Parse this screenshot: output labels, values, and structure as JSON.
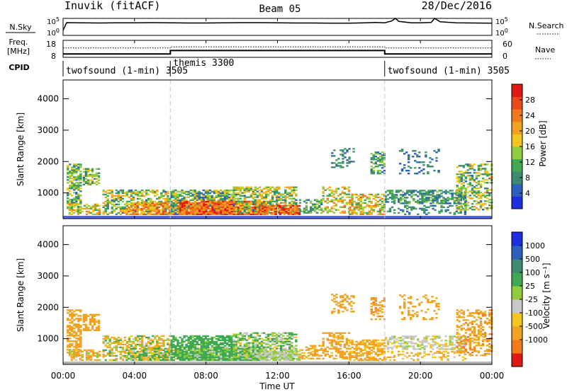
{
  "header": {
    "station": "Inuvik (fitACF)",
    "beam": "Beam 05",
    "date": "28/Dec/2016"
  },
  "noise_panel": {
    "left_label": "N.Sky",
    "right_label": "N.Search",
    "right_legend_line": "dotted",
    "ytick_labels": [
      "10^5",
      "10^0"
    ],
    "sky_noise_trace": [
      [
        0.0,
        0.3
      ],
      [
        0.2,
        0.75
      ],
      [
        1,
        0.74
      ],
      [
        2,
        0.73
      ],
      [
        3,
        0.74
      ],
      [
        4,
        0.74
      ],
      [
        5,
        0.75
      ],
      [
        6,
        0.74
      ],
      [
        7,
        0.73
      ],
      [
        8,
        0.73
      ],
      [
        9,
        0.74
      ],
      [
        10,
        0.75
      ],
      [
        11,
        0.75
      ],
      [
        12,
        0.74
      ],
      [
        13,
        0.73
      ],
      [
        14,
        0.73
      ],
      [
        15,
        0.72
      ],
      [
        16,
        0.72
      ],
      [
        16.9,
        0.74
      ],
      [
        17.5,
        0.76
      ],
      [
        18,
        0.74
      ],
      [
        18.4,
        0.85
      ],
      [
        18.6,
        1.0
      ],
      [
        18.8,
        0.82
      ],
      [
        19.5,
        0.74
      ],
      [
        20,
        0.74
      ],
      [
        20.6,
        0.76
      ],
      [
        20.8,
        1.0
      ],
      [
        21.1,
        0.8
      ],
      [
        22,
        0.74
      ],
      [
        23,
        0.73
      ],
      [
        24,
        0.72
      ]
    ]
  },
  "freq_panel": {
    "left_label_top": "Freq.",
    "left_label_bottom": "[MHz]",
    "right_label": "Nave",
    "right_legend_line": "dotted",
    "left_ticks": [
      8,
      18
    ],
    "right_ticks": [
      0,
      60
    ],
    "freq_trace": [
      [
        0,
        10
      ],
      [
        6,
        10
      ],
      [
        6,
        12
      ],
      [
        18,
        12
      ],
      [
        18,
        10
      ],
      [
        24,
        10
      ]
    ],
    "nave_trace": [
      [
        0,
        33
      ],
      [
        6,
        33
      ],
      [
        6,
        37
      ],
      [
        18,
        37
      ],
      [
        18,
        33
      ],
      [
        24,
        33
      ]
    ]
  },
  "cpid_panel": {
    "label": "CPID",
    "boundaries": [
      6,
      18
    ],
    "segments": [
      {
        "start": 0,
        "text": "twofsound (1-min) 3505"
      },
      {
        "start": 6,
        "text": "themis 3300"
      },
      {
        "start": 18,
        "text": "twofsound (1-min) 3505"
      }
    ]
  },
  "x_axis": {
    "title": "Time UT",
    "tick_labels": [
      "00:00",
      "04:00",
      "08:00",
      "12:00",
      "16:00",
      "20:00",
      "00:00"
    ],
    "range_hours": [
      0,
      24
    ]
  },
  "chart_data": [
    {
      "type": "heatmap",
      "name": "power",
      "ylabel": "Slant Range [km]",
      "ylim": [
        180,
        4600
      ],
      "ytick_labels": [
        "1000",
        "2000",
        "3000",
        "4000"
      ],
      "ytick_values": [
        1000,
        2000,
        3000,
        4000
      ],
      "colorbar_label": "Power [dB]",
      "colorbar_tick_labels": [
        "4",
        "8",
        "12",
        "16",
        "20",
        "24",
        "28"
      ],
      "colorbar_range": [
        0,
        32
      ],
      "colorbar_colors": [
        "#1c2ee0",
        "#2e5fbd",
        "#3d8a6e",
        "#3fa852",
        "#8fcd3a",
        "#f2c61e",
        "#f2a21e",
        "#f07a1c",
        "#ea4a16",
        "#e01a12"
      ],
      "ground_band": {
        "range_lo": 180,
        "range_hi": 270,
        "value": 2
      },
      "blobs": [
        {
          "t0": 0.2,
          "t1": 1.0,
          "r0": 450,
          "r1": 1900,
          "vlo": 6,
          "vhi": 18,
          "dens": 0.55
        },
        {
          "t0": 1.1,
          "t1": 2.0,
          "r0": 1250,
          "r1": 1750,
          "vlo": 6,
          "vhi": 20,
          "dens": 0.6
        },
        {
          "t0": 0.3,
          "t1": 2.0,
          "r0": 300,
          "r1": 650,
          "vlo": 10,
          "vhi": 24,
          "dens": 0.6
        },
        {
          "t0": 2.2,
          "t1": 6.0,
          "r0": 300,
          "r1": 1100,
          "vlo": 6,
          "vhi": 22,
          "dens": 0.55
        },
        {
          "t0": 3.5,
          "t1": 6.5,
          "r0": 300,
          "r1": 700,
          "vlo": 16,
          "vhi": 28,
          "dens": 0.7
        },
        {
          "t0": 6.0,
          "t1": 9.5,
          "r0": 300,
          "r1": 1100,
          "vlo": 4,
          "vhi": 20,
          "dens": 0.7
        },
        {
          "t0": 6.5,
          "t1": 11.5,
          "r0": 300,
          "r1": 750,
          "vlo": 20,
          "vhi": 32,
          "dens": 0.85
        },
        {
          "t0": 9.5,
          "t1": 13.0,
          "r0": 350,
          "r1": 1200,
          "vlo": 6,
          "vhi": 22,
          "dens": 0.6
        },
        {
          "t0": 11.0,
          "t1": 13.2,
          "r0": 300,
          "r1": 600,
          "vlo": 20,
          "vhi": 32,
          "dens": 0.8
        },
        {
          "t0": 13.2,
          "t1": 14.5,
          "r0": 350,
          "r1": 800,
          "vlo": 6,
          "vhi": 16,
          "dens": 0.45
        },
        {
          "t0": 14.5,
          "t1": 16.0,
          "r0": 350,
          "r1": 1200,
          "vlo": 10,
          "vhi": 24,
          "dens": 0.4
        },
        {
          "t0": 15.0,
          "t1": 16.2,
          "r0": 1800,
          "r1": 2400,
          "vlo": 4,
          "vhi": 12,
          "dens": 0.3
        },
        {
          "t0": 16.0,
          "t1": 18.0,
          "r0": 300,
          "r1": 950,
          "vlo": 10,
          "vhi": 26,
          "dens": 0.6
        },
        {
          "t0": 17.2,
          "t1": 18.0,
          "r0": 1600,
          "r1": 2300,
          "vlo": 4,
          "vhi": 16,
          "dens": 0.5
        },
        {
          "t0": 18.0,
          "t1": 22.5,
          "r0": 650,
          "r1": 1100,
          "vlo": 4,
          "vhi": 14,
          "dens": 0.55
        },
        {
          "t0": 18.0,
          "t1": 22.5,
          "r0": 300,
          "r1": 600,
          "vlo": 4,
          "vhi": 12,
          "dens": 0.3
        },
        {
          "t0": 18.8,
          "t1": 21.0,
          "r0": 1600,
          "r1": 2400,
          "vlo": 4,
          "vhi": 10,
          "dens": 0.18
        },
        {
          "t0": 22.0,
          "t1": 24.0,
          "r0": 450,
          "r1": 1900,
          "vlo": 6,
          "vhi": 22,
          "dens": 0.45
        }
      ]
    },
    {
      "type": "heatmap",
      "name": "velocity",
      "ylabel": "Slant Range [km]",
      "ylim": [
        180,
        4600
      ],
      "ytick_labels": [
        "1000",
        "2000",
        "3000",
        "4000"
      ],
      "ytick_values": [
        1000,
        2000,
        3000,
        4000
      ],
      "colorbar_label": "Velocity [m s⁻¹]",
      "colorbar_tick_labels": [
        "1000",
        "500",
        "100",
        "25",
        "-25",
        "-100",
        "-500",
        "-1000"
      ],
      "colorbar_range": [
        -1200,
        1200
      ],
      "colorbar_colors": [
        "#1c2ee0",
        "#2e5fbd",
        "#3d8a6e",
        "#3fa852",
        "#8fcd3a",
        "#c8c8c8",
        "#f2c61e",
        "#f2a21e",
        "#f07a1c",
        "#e01a12"
      ],
      "ground_band": {
        "range_lo": 180,
        "range_hi": 270,
        "value": 0
      },
      "blobs": [
        {
          "t0": 0.2,
          "t1": 1.0,
          "r0": 450,
          "r1": 1900,
          "vlo": -500,
          "vhi": -100,
          "dens": 0.55
        },
        {
          "t0": 1.1,
          "t1": 2.0,
          "r0": 1250,
          "r1": 1750,
          "vlo": -500,
          "vhi": -100,
          "dens": 0.6
        },
        {
          "t0": 0.3,
          "t1": 2.0,
          "r0": 300,
          "r1": 650,
          "vlo": -300,
          "vhi": 100,
          "dens": 0.6
        },
        {
          "t0": 2.2,
          "t1": 6.0,
          "r0": 300,
          "r1": 1100,
          "vlo": -300,
          "vhi": 150,
          "dens": 0.55
        },
        {
          "t0": 3.5,
          "t1": 6.5,
          "r0": 300,
          "r1": 700,
          "vlo": -150,
          "vhi": 300,
          "dens": 0.7
        },
        {
          "t0": 6.0,
          "t1": 9.5,
          "r0": 300,
          "r1": 1100,
          "vlo": 50,
          "vhi": 400,
          "dens": 0.7
        },
        {
          "t0": 6.5,
          "t1": 11.5,
          "r0": 300,
          "r1": 750,
          "vlo": -20,
          "vhi": 300,
          "dens": 0.85
        },
        {
          "t0": 9.5,
          "t1": 13.0,
          "r0": 350,
          "r1": 1200,
          "vlo": -60,
          "vhi": 200,
          "dens": 0.6
        },
        {
          "t0": 11.0,
          "t1": 13.2,
          "r0": 300,
          "r1": 600,
          "vlo": -20,
          "vhi": 60,
          "dens": 0.8
        },
        {
          "t0": 13.2,
          "t1": 14.5,
          "r0": 350,
          "r1": 800,
          "vlo": -300,
          "vhi": -50,
          "dens": 0.45
        },
        {
          "t0": 14.5,
          "t1": 16.0,
          "r0": 350,
          "r1": 1200,
          "vlo": -500,
          "vhi": -60,
          "dens": 0.4
        },
        {
          "t0": 15.0,
          "t1": 16.2,
          "r0": 1800,
          "r1": 2400,
          "vlo": -500,
          "vhi": -100,
          "dens": 0.3
        },
        {
          "t0": 16.0,
          "t1": 18.0,
          "r0": 300,
          "r1": 950,
          "vlo": -400,
          "vhi": 0,
          "dens": 0.6
        },
        {
          "t0": 17.2,
          "t1": 18.0,
          "r0": 1600,
          "r1": 2300,
          "vlo": -600,
          "vhi": -150,
          "dens": 0.5
        },
        {
          "t0": 18.0,
          "t1": 22.5,
          "r0": 650,
          "r1": 1100,
          "vlo": -40,
          "vhi": 40,
          "dens": 0.55
        },
        {
          "t0": 18.0,
          "t1": 22.5,
          "r0": 300,
          "r1": 600,
          "vlo": -200,
          "vhi": 0,
          "dens": 0.3
        },
        {
          "t0": 18.8,
          "t1": 21.0,
          "r0": 1600,
          "r1": 2400,
          "vlo": -500,
          "vhi": -100,
          "dens": 0.18
        },
        {
          "t0": 22.0,
          "t1": 24.0,
          "r0": 450,
          "r1": 1900,
          "vlo": -600,
          "vhi": -50,
          "dens": 0.45
        }
      ]
    }
  ]
}
